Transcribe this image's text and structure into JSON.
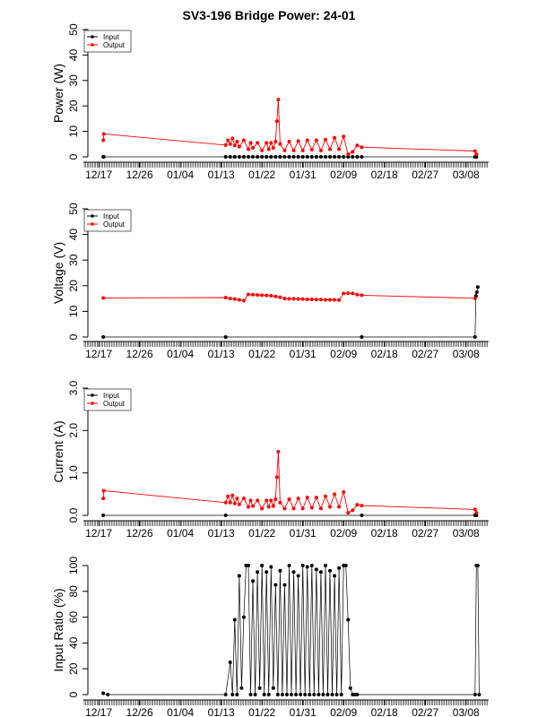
{
  "chart_data": {
    "title": "SV3-196 Bridge Power: 24-01",
    "type": "line",
    "x_tick_labels": [
      "12/17",
      "12/26",
      "01/04",
      "01/13",
      "01/22",
      "01/31",
      "02/09",
      "02/18",
      "02/27",
      "03/08"
    ],
    "x_days_range": [
      -2,
      86
    ],
    "series_colors": {
      "Input": "#000000",
      "Output": "#ff0000"
    },
    "panels": [
      {
        "name": "power",
        "type": "line",
        "ylabel": "Power (W)",
        "ylim": [
          0,
          50
        ],
        "yticks": [
          "0",
          "10",
          "20",
          "30",
          "40",
          "50"
        ],
        "legend": [
          "Input",
          "Output"
        ],
        "series": [
          {
            "name": "Input",
            "x": [
              1,
              1.1,
              28,
              29,
              30,
              31,
              32,
              33,
              34,
              35,
              36,
              37,
              38,
              39,
              40,
              41,
              42,
              43,
              44,
              45,
              46,
              47,
              48,
              49,
              50,
              51,
              52,
              53,
              54,
              55,
              56,
              57,
              58,
              83,
              83.3
            ],
            "y": [
              0,
              0,
              0,
              0,
              0,
              0,
              0,
              0,
              0,
              0,
              0,
              0,
              0,
              0,
              0,
              0,
              0,
              0,
              0,
              0,
              0,
              0,
              0,
              0,
              0,
              0,
              0,
              0,
              0,
              0,
              0,
              0,
              0,
              0,
              0
            ]
          },
          {
            "name": "Output",
            "x": [
              1,
              1.1,
              28,
              28.5,
              29,
              29.5,
              30,
              30.5,
              31,
              32,
              33,
              33.5,
              34,
              35,
              36,
              37,
              37.5,
              38,
              38.5,
              39,
              39.3,
              39.6,
              40,
              41,
              42,
              43,
              44,
              45,
              46,
              47,
              48,
              49,
              50,
              51,
              52,
              53,
              54,
              55,
              56,
              57,
              58,
              83,
              83.3
            ],
            "y": [
              6.5,
              9,
              4.6,
              6.5,
              5,
              7.2,
              4.5,
              6,
              4,
              6.5,
              3,
              5.5,
              3.5,
              5.5,
              2.5,
              5.5,
              3,
              5.5,
              3.5,
              6,
              14,
              22.5,
              5,
              2.5,
              6,
              2.5,
              6.2,
              2.5,
              6.5,
              2.8,
              6.5,
              2.5,
              6.8,
              3,
              7.5,
              3,
              8,
              1,
              2,
              4.5,
              3.8,
              2.3,
              1
            ]
          }
        ]
      },
      {
        "name": "voltage",
        "type": "line",
        "ylabel": "Voltage (V)",
        "ylim": [
          0,
          50
        ],
        "yticks": [
          "0",
          "10",
          "20",
          "30",
          "40",
          "50"
        ],
        "legend": [
          "Input",
          "Output"
        ],
        "series": [
          {
            "name": "Input",
            "x": [
              1,
              28,
              58,
              83,
              83.2,
              83.4,
              83.6
            ],
            "y": [
              0,
              0,
              0,
              0,
              16,
              17.5,
              19.5
            ]
          },
          {
            "name": "Output",
            "x": [
              1,
              28,
              29,
              30,
              31,
              32,
              33,
              34,
              35,
              36,
              37,
              38,
              39,
              40,
              41,
              42,
              43,
              44,
              45,
              46,
              47,
              48,
              49,
              50,
              51,
              52,
              53,
              54,
              55,
              56,
              57,
              58,
              83
            ],
            "y": [
              15.2,
              15.4,
              15,
              14.8,
              14.5,
              14.2,
              16.6,
              16.5,
              16.4,
              16.3,
              16.2,
              16.1,
              15.8,
              15.5,
              15,
              14.9,
              14.9,
              14.8,
              14.8,
              14.7,
              14.7,
              14.6,
              14.6,
              14.5,
              14.5,
              14.5,
              14.4,
              17,
              17.1,
              17,
              16.5,
              16.3,
              15.1
            ]
          }
        ]
      },
      {
        "name": "current",
        "type": "line",
        "ylabel": "Current (A)",
        "ylim": [
          0,
          3
        ],
        "yticks": [
          "0.0",
          "1.0",
          "2.0",
          "3.0"
        ],
        "legend": [
          "Input",
          "Output"
        ],
        "series": [
          {
            "name": "Input",
            "x": [
              1,
              28,
              58,
              83,
              83.3
            ],
            "y": [
              0,
              0,
              0,
              0,
              0
            ]
          },
          {
            "name": "Output",
            "x": [
              1,
              1.1,
              28,
              28.5,
              29,
              29.5,
              30,
              30.5,
              31,
              32,
              33,
              33.5,
              34,
              35,
              36,
              37,
              37.5,
              38,
              38.5,
              39,
              39.3,
              39.6,
              40,
              41,
              42,
              43,
              44,
              45,
              46,
              47,
              48,
              49,
              50,
              51,
              52,
              53,
              54,
              55,
              56,
              57,
              58,
              83,
              83.3
            ],
            "y": [
              0.4,
              0.58,
              0.3,
              0.45,
              0.3,
              0.47,
              0.28,
              0.4,
              0.26,
              0.4,
              0.2,
              0.35,
              0.22,
              0.35,
              0.16,
              0.35,
              0.2,
              0.35,
              0.22,
              0.38,
              0.9,
              1.5,
              0.3,
              0.16,
              0.38,
              0.16,
              0.4,
              0.16,
              0.42,
              0.18,
              0.42,
              0.16,
              0.45,
              0.2,
              0.5,
              0.2,
              0.55,
              0.06,
              0.12,
              0.25,
              0.23,
              0.14,
              0.06
            ]
          }
        ]
      },
      {
        "name": "ratio",
        "type": "line",
        "ylabel": "Input Ratio (%)",
        "ylim": [
          0,
          100
        ],
        "yticks": [
          "0",
          "20",
          "40",
          "60",
          "80",
          "100"
        ],
        "legend": [],
        "series": [
          {
            "name": "Input",
            "x": [
              1,
              2,
              28,
              29,
              29.5,
              30,
              30.5,
              31,
              31.5,
              32,
              32.5,
              33,
              33.5,
              34,
              34.5,
              35,
              35.5,
              36,
              36.5,
              37,
              37.5,
              38,
              38.5,
              39,
              39.5,
              40,
              40.5,
              41,
              41.5,
              42,
              42.5,
              43,
              43.5,
              44,
              44.5,
              45,
              45.5,
              46,
              46.5,
              47,
              47.5,
              48,
              48.5,
              49,
              49.5,
              50,
              50.5,
              51,
              51.5,
              52,
              52.5,
              53,
              53.5,
              54,
              54.5,
              55,
              55.5,
              56,
              56.5,
              57,
              83,
              83.3,
              83.6,
              83.9
            ],
            "y": [
              1,
              0,
              0,
              25,
              0,
              58,
              0,
              92,
              5,
              60,
              100,
              100,
              0,
              88,
              0,
              95,
              5,
              100,
              0,
              95,
              0,
              99,
              5,
              85,
              0,
              96,
              0,
              85,
              0,
              100,
              0,
              95,
              0,
              92,
              0,
              100,
              0,
              99,
              0,
              100,
              0,
              97,
              0,
              95,
              0,
              100,
              0,
              96,
              0,
              92,
              0,
              98,
              0,
              100,
              100,
              58,
              5,
              0,
              0,
              0,
              0,
              100,
              100,
              0
            ]
          }
        ]
      }
    ]
  }
}
